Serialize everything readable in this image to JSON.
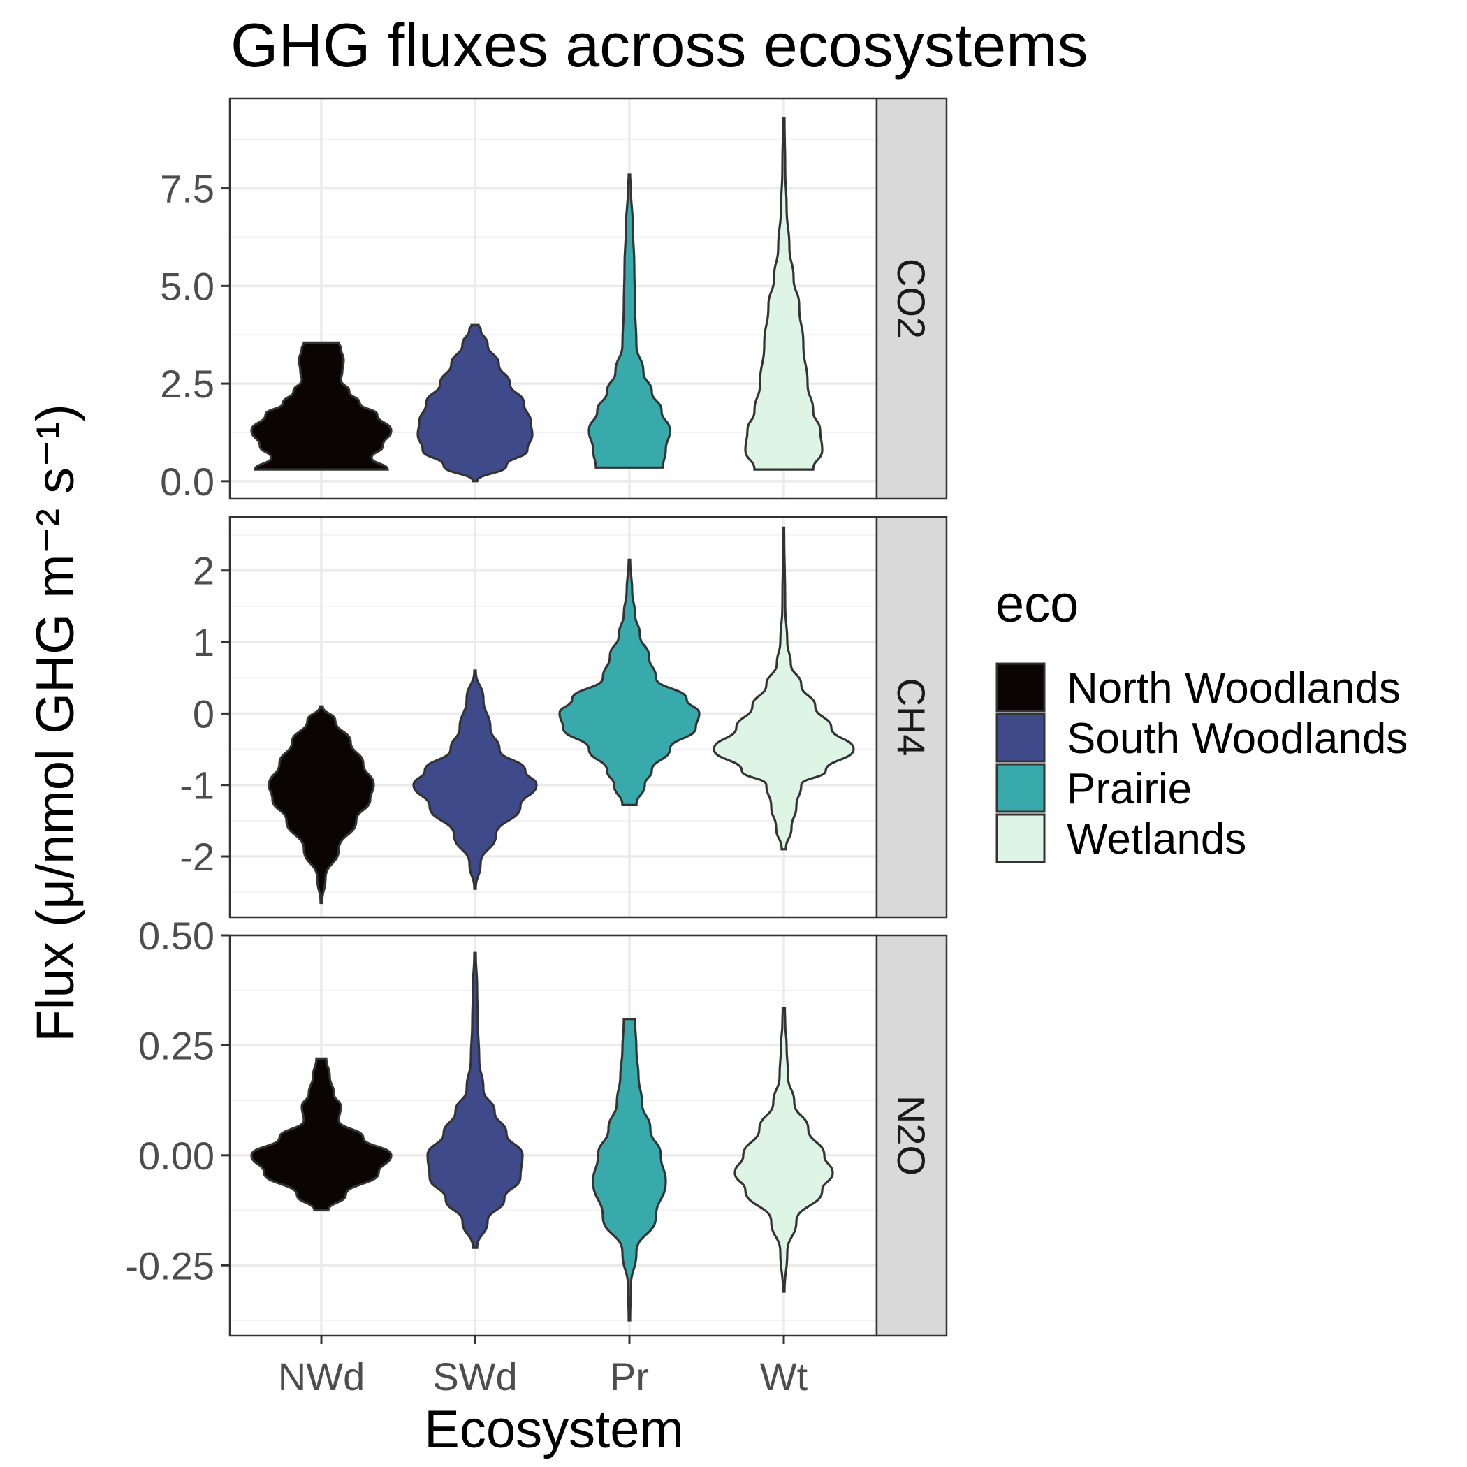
{
  "chart_data": {
    "type": "violin",
    "title": "GHG fluxes across ecosystems",
    "xlabel": "Ecosystem",
    "ylabel": "Flux (μ/nmol GHG m⁻² s⁻¹)",
    "categories": [
      "NWd",
      "SWd",
      "Pr",
      "Wt"
    ],
    "legend": {
      "title": "eco",
      "position": "right",
      "entries": [
        {
          "name": "North Woodlands",
          "color": "#0a0405"
        },
        {
          "name": "South Woodlands",
          "color": "#3f4a8a"
        },
        {
          "name": "Prairie",
          "color": "#38aaac"
        },
        {
          "name": "Wetlands",
          "color": "#def5e5"
        }
      ]
    },
    "grid": true,
    "panels": [
      {
        "name": "CO2",
        "ylim": [
          -0.45,
          9.8
        ],
        "yticks": [
          0.0,
          2.5,
          5.0,
          7.5
        ],
        "ytick_labels": [
          "0.0",
          "2.5",
          "5.0",
          "7.5"
        ],
        "violins": [
          {
            "category": "NWd",
            "profile": [
              [
                0.3,
                0.95
              ],
              [
                0.6,
                0.72
              ],
              [
                0.9,
                0.88
              ],
              [
                1.3,
                1.0
              ],
              [
                1.7,
                0.8
              ],
              [
                2.0,
                0.55
              ],
              [
                2.3,
                0.4
              ],
              [
                2.6,
                0.28
              ],
              [
                2.8,
                0.3
              ],
              [
                3.1,
                0.32
              ],
              [
                3.4,
                0.28
              ],
              [
                3.55,
                0.25
              ]
            ]
          },
          {
            "category": "SWd",
            "profile": [
              [
                0.0,
                0.03
              ],
              [
                0.4,
                0.45
              ],
              [
                0.8,
                0.75
              ],
              [
                1.2,
                0.82
              ],
              [
                1.5,
                0.8
              ],
              [
                2.0,
                0.7
              ],
              [
                2.5,
                0.5
              ],
              [
                3.0,
                0.34
              ],
              [
                3.5,
                0.18
              ],
              [
                3.9,
                0.08
              ],
              [
                4.0,
                0.05
              ]
            ]
          },
          {
            "category": "Pr",
            "profile": [
              [
                0.35,
                0.48
              ],
              [
                0.8,
                0.52
              ],
              [
                1.3,
                0.58
              ],
              [
                1.8,
                0.46
              ],
              [
                2.3,
                0.32
              ],
              [
                2.8,
                0.2
              ],
              [
                3.5,
                0.1
              ],
              [
                4.5,
                0.08
              ],
              [
                5.5,
                0.07
              ],
              [
                6.5,
                0.05
              ],
              [
                7.5,
                0.02
              ],
              [
                7.85,
                0.01
              ]
            ]
          },
          {
            "category": "Wt",
            "profile": [
              [
                0.3,
                0.42
              ],
              [
                0.8,
                0.55
              ],
              [
                1.3,
                0.52
              ],
              [
                1.8,
                0.42
              ],
              [
                2.5,
                0.34
              ],
              [
                3.5,
                0.28
              ],
              [
                4.5,
                0.22
              ],
              [
                5.2,
                0.14
              ],
              [
                6.0,
                0.08
              ],
              [
                7.0,
                0.04
              ],
              [
                8.0,
                0.02
              ],
              [
                9.3,
                0.01
              ]
            ]
          }
        ]
      },
      {
        "name": "CH4",
        "ylim": [
          -2.85,
          2.75
        ],
        "yticks": [
          -2,
          -1,
          0,
          1,
          2
        ],
        "ytick_labels": [
          "-2",
          "-1",
          "0",
          "1",
          "2"
        ],
        "violins": [
          {
            "category": "NWd",
            "profile": [
              [
                -2.65,
                0.01
              ],
              [
                -2.3,
                0.06
              ],
              [
                -1.9,
                0.25
              ],
              [
                -1.5,
                0.5
              ],
              [
                -1.2,
                0.7
              ],
              [
                -1.0,
                0.75
              ],
              [
                -0.7,
                0.6
              ],
              [
                -0.4,
                0.42
              ],
              [
                -0.1,
                0.2
              ],
              [
                0.1,
                0.02
              ]
            ]
          },
          {
            "category": "SWd",
            "profile": [
              [
                -2.45,
                0.01
              ],
              [
                -2.1,
                0.08
              ],
              [
                -1.7,
                0.3
              ],
              [
                -1.3,
                0.65
              ],
              [
                -1.0,
                0.88
              ],
              [
                -0.8,
                0.72
              ],
              [
                -0.5,
                0.35
              ],
              [
                -0.2,
                0.22
              ],
              [
                0.2,
                0.12
              ],
              [
                0.6,
                0.01
              ]
            ]
          },
          {
            "category": "Pr",
            "profile": [
              [
                -1.28,
                0.1
              ],
              [
                -1.0,
                0.22
              ],
              [
                -0.8,
                0.32
              ],
              [
                -0.5,
                0.58
              ],
              [
                -0.2,
                0.95
              ],
              [
                0.0,
                1.0
              ],
              [
                0.2,
                0.82
              ],
              [
                0.5,
                0.38
              ],
              [
                0.8,
                0.28
              ],
              [
                1.1,
                0.15
              ],
              [
                1.4,
                0.08
              ],
              [
                1.7,
                0.04
              ],
              [
                2.15,
                0.01
              ]
            ]
          },
          {
            "category": "Wt",
            "profile": [
              [
                -1.9,
                0.03
              ],
              [
                -1.6,
                0.11
              ],
              [
                -1.3,
                0.18
              ],
              [
                -1.0,
                0.25
              ],
              [
                -0.8,
                0.6
              ],
              [
                -0.5,
                1.0
              ],
              [
                -0.2,
                0.68
              ],
              [
                0.1,
                0.45
              ],
              [
                0.4,
                0.25
              ],
              [
                0.7,
                0.1
              ],
              [
                1.0,
                0.05
              ],
              [
                1.5,
                0.02
              ],
              [
                2.6,
                0.005
              ]
            ]
          }
        ]
      },
      {
        "name": "N2O",
        "ylim": [
          -0.41,
          0.5
        ],
        "yticks": [
          -0.25,
          0.0,
          0.25,
          0.5
        ],
        "ytick_labels": [
          "-0.25",
          "0.00",
          "0.25",
          "0.50"
        ],
        "violins": [
          {
            "category": "NWd",
            "profile": [
              [
                -0.125,
                0.1
              ],
              [
                -0.09,
                0.35
              ],
              [
                -0.04,
                0.82
              ],
              [
                0.0,
                1.0
              ],
              [
                0.04,
                0.6
              ],
              [
                0.08,
                0.25
              ],
              [
                0.11,
                0.28
              ],
              [
                0.14,
                0.18
              ],
              [
                0.18,
                0.12
              ],
              [
                0.22,
                0.07
              ]
            ]
          },
          {
            "category": "SWd",
            "profile": [
              [
                -0.21,
                0.03
              ],
              [
                -0.15,
                0.18
              ],
              [
                -0.1,
                0.42
              ],
              [
                -0.05,
                0.65
              ],
              [
                0.0,
                0.68
              ],
              [
                0.05,
                0.45
              ],
              [
                0.1,
                0.28
              ],
              [
                0.15,
                0.12
              ],
              [
                0.22,
                0.06
              ],
              [
                0.3,
                0.04
              ],
              [
                0.38,
                0.03
              ],
              [
                0.46,
                0.01
              ]
            ]
          },
          {
            "category": "Pr",
            "profile": [
              [
                -0.375,
                0.01
              ],
              [
                -0.3,
                0.02
              ],
              [
                -0.22,
                0.1
              ],
              [
                -0.14,
                0.38
              ],
              [
                -0.06,
                0.52
              ],
              [
                0.0,
                0.45
              ],
              [
                0.06,
                0.3
              ],
              [
                0.12,
                0.18
              ],
              [
                0.18,
                0.13
              ],
              [
                0.24,
                0.1
              ],
              [
                0.31,
                0.08
              ]
            ]
          },
          {
            "category": "Wt",
            "profile": [
              [
                -0.31,
                0.01
              ],
              [
                -0.22,
                0.05
              ],
              [
                -0.15,
                0.18
              ],
              [
                -0.08,
                0.55
              ],
              [
                -0.04,
                0.7
              ],
              [
                0.0,
                0.58
              ],
              [
                0.06,
                0.35
              ],
              [
                0.12,
                0.15
              ],
              [
                0.18,
                0.06
              ],
              [
                0.25,
                0.04
              ],
              [
                0.3,
                0.02
              ],
              [
                0.335,
                0.015
              ]
            ]
          }
        ]
      }
    ]
  }
}
